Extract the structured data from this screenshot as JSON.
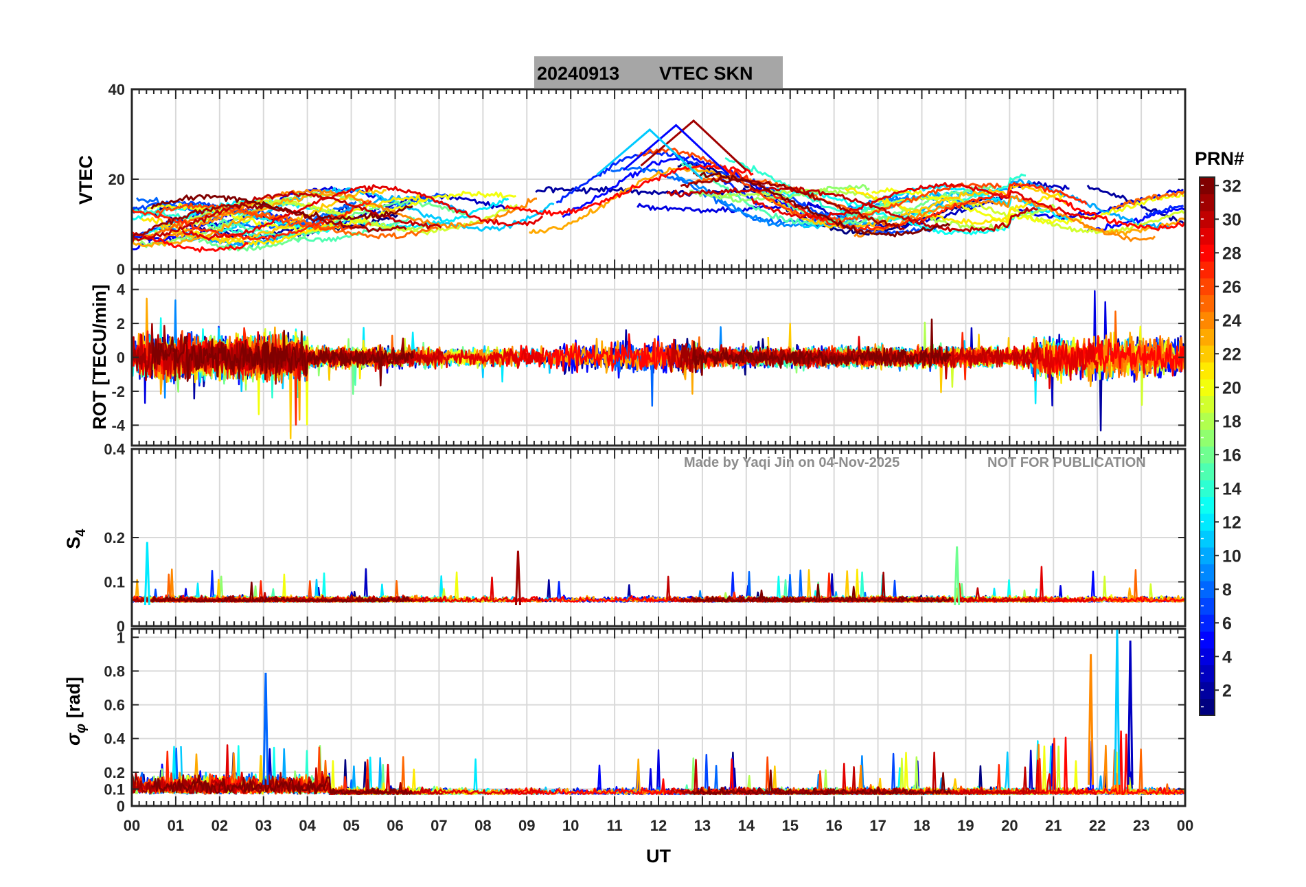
{
  "chart_data": {
    "type": "line",
    "title_date": "20240913",
    "title_text": "VTEC  SKN",
    "xlabel": "UT",
    "x_ticks": [
      "00",
      "01",
      "02",
      "03",
      "04",
      "05",
      "06",
      "07",
      "08",
      "09",
      "10",
      "11",
      "12",
      "13",
      "14",
      "15",
      "16",
      "17",
      "18",
      "19",
      "20",
      "21",
      "22",
      "23",
      "00"
    ],
    "xlim_hours": [
      0,
      24
    ],
    "watermark_author": "Made by Yaqi Jin on 04-Nov-2025",
    "watermark_notice": "NOT FOR PUBLICATION",
    "colorbar": {
      "title": "PRN#",
      "range": [
        1,
        32
      ],
      "ticks": [
        "2",
        "4",
        "6",
        "8",
        "10",
        "12",
        "14",
        "16",
        "18",
        "20",
        "22",
        "24",
        "26",
        "28",
        "30",
        "32"
      ],
      "colormap": "jet"
    },
    "panels": [
      {
        "name": "vtec",
        "ylabel": "VTEC",
        "ylim": [
          0,
          40
        ],
        "yticks": [
          "0",
          "20",
          "40"
        ],
        "series_description": "VTEC per satellite PRN, diurnal rise to ~30 TECU near 12-13 UT",
        "peaks": [
          {
            "prn": 31,
            "hour": 12.8,
            "value": 33
          },
          {
            "prn": 5,
            "hour": 12.4,
            "value": 32
          },
          {
            "prn": 11,
            "hour": 11.8,
            "value": 31
          }
        ]
      },
      {
        "name": "rot",
        "ylabel": "ROT [TECU/min]",
        "ylim": [
          -5.2,
          5.2
        ],
        "yticks": [
          "-4",
          "-2",
          "0",
          "2",
          "4"
        ]
      },
      {
        "name": "s4",
        "ylabel": "S4",
        "ylabel_main": "S",
        "ylabel_sub": "4",
        "ylim": [
          0,
          0.4
        ],
        "yticks": [
          "0",
          "0.1",
          "0.2",
          "0.4"
        ],
        "peaks": [
          {
            "prn": 12,
            "hour": 0.35,
            "value": 0.19
          },
          {
            "prn": 31,
            "hour": 8.8,
            "value": 0.17
          },
          {
            "prn": 16,
            "hour": 18.8,
            "value": 0.18
          }
        ]
      },
      {
        "name": "sigma_phi",
        "ylabel": "σφ [rad]",
        "ylabel_sigma": "σ",
        "ylabel_sub": "φ",
        "ylabel_unit": "[rad]",
        "ylim": [
          0,
          1.05
        ],
        "yticks": [
          "0",
          "0.1",
          "0.2",
          "0.4",
          "0.6",
          "0.8",
          "1"
        ],
        "peaks": [
          {
            "prn": 11,
            "hour": 22.45,
            "value": 1.05
          },
          {
            "prn": 3,
            "hour": 22.75,
            "value": 0.98
          },
          {
            "prn": 24,
            "hour": 21.85,
            "value": 0.9
          },
          {
            "prn": 8,
            "hour": 3.05,
            "value": 0.79
          }
        ]
      }
    ]
  }
}
